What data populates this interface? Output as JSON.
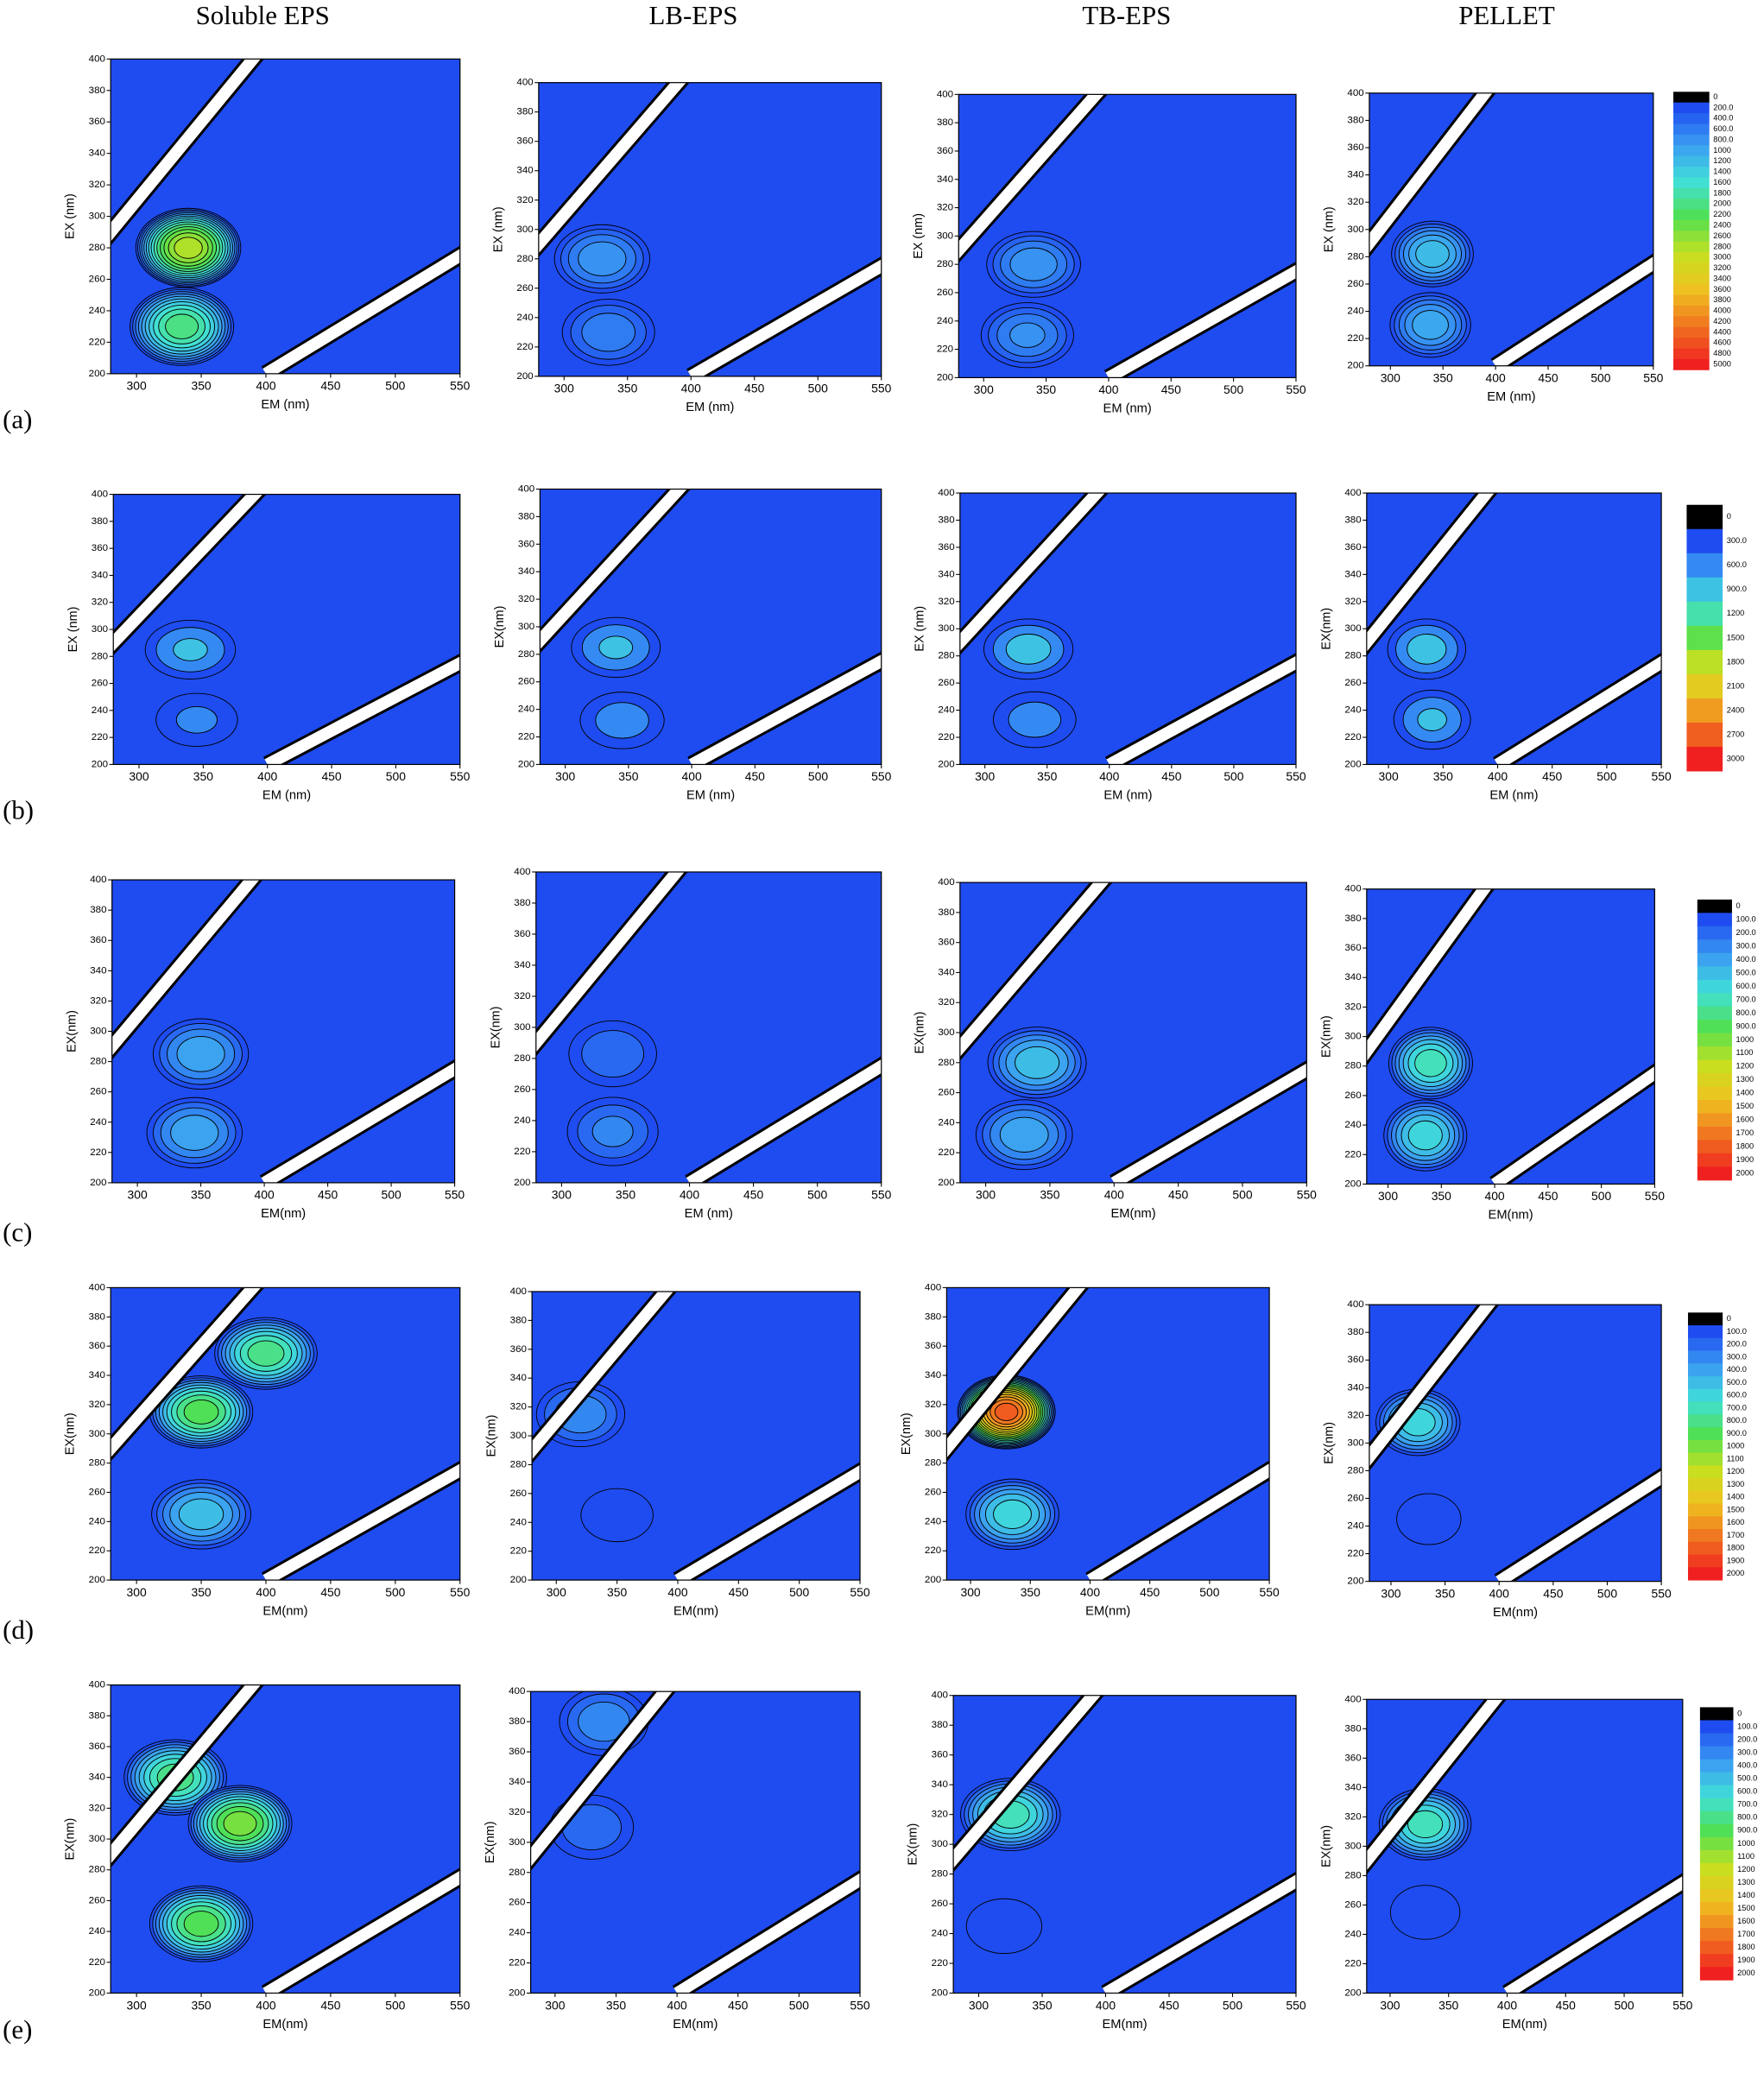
{
  "columns": [
    "Soluble EPS",
    "LB-EPS",
    "TB-EPS",
    "PELLET"
  ],
  "colormap": [
    "#000000",
    "#1f4cf0",
    "#3a9cf2",
    "#40e0d8",
    "#50e050",
    "#c8e020",
    "#f0c020",
    "#f07020",
    "#f02020"
  ],
  "rows": [
    {
      "label": "(a)",
      "colorbar": {
        "ticks": [
          0,
          {
            "value": 200,
            "label": "200.0"
          },
          {
            "value": 400,
            "label": "400.0"
          },
          {
            "value": 600,
            "label": "600.0"
          },
          {
            "value": 800,
            "label": "800.0"
          },
          1000,
          1200,
          1400,
          1600,
          1800,
          2000,
          2200,
          2400,
          2600,
          2800,
          3000,
          3200,
          3400,
          3600,
          3800,
          4000,
          4200,
          4400,
          4600,
          4800,
          5000
        ]
      }
    },
    {
      "label": "(b)",
      "colorbar": {
        "ticks": [
          0,
          {
            "value": 300,
            "label": "300.0"
          },
          {
            "value": 600,
            "label": "600.0"
          },
          {
            "value": 900,
            "label": "900.0"
          },
          1200,
          1500,
          1800,
          2100,
          2400,
          2700,
          3000
        ]
      }
    },
    {
      "label": "(c)",
      "colorbar": {
        "ticks": [
          0,
          {
            "value": 100,
            "label": "100.0"
          },
          {
            "value": 200,
            "label": "200.0"
          },
          {
            "value": 300,
            "label": "300.0"
          },
          {
            "value": 400,
            "label": "400.0"
          },
          {
            "value": 500,
            "label": "500.0"
          },
          {
            "value": 600,
            "label": "600.0"
          },
          {
            "value": 700,
            "label": "700.0"
          },
          {
            "value": 800,
            "label": "800.0"
          },
          {
            "value": 900,
            "label": "900.0"
          },
          1000,
          1100,
          1200,
          1300,
          1400,
          1500,
          1600,
          1700,
          1800,
          1900,
          2000
        ]
      }
    },
    {
      "label": "(d)",
      "colorbar": {
        "ticks": [
          0,
          {
            "value": 100,
            "label": "100.0"
          },
          {
            "value": 200,
            "label": "200.0"
          },
          {
            "value": 300,
            "label": "300.0"
          },
          {
            "value": 400,
            "label": "400.0"
          },
          {
            "value": 500,
            "label": "500.0"
          },
          {
            "value": 600,
            "label": "600.0"
          },
          {
            "value": 700,
            "label": "700.0"
          },
          {
            "value": 800,
            "label": "800.0"
          },
          {
            "value": 900,
            "label": "900.0"
          },
          1000,
          1100,
          1200,
          1300,
          1400,
          1500,
          1600,
          1700,
          1800,
          1900,
          2000
        ]
      }
    },
    {
      "label": "(e)",
      "colorbar": {
        "ticks": [
          0,
          {
            "value": 100,
            "label": "100.0"
          },
          {
            "value": 200,
            "label": "200.0"
          },
          {
            "value": 300,
            "label": "300.0"
          },
          {
            "value": 400,
            "label": "400.0"
          },
          {
            "value": 500,
            "label": "500.0"
          },
          {
            "value": 600,
            "label": "600.0"
          },
          {
            "value": 700,
            "label": "700.0"
          },
          {
            "value": 800,
            "label": "800.0"
          },
          {
            "value": 900,
            "label": "900.0"
          },
          1000,
          1100,
          1200,
          1300,
          1400,
          1500,
          1600,
          1700,
          1800,
          1900,
          2000
        ]
      }
    }
  ],
  "chart_data": [
    {
      "type": "contour",
      "xlabel": "EM (nm)",
      "ylabel": "EX (nm)",
      "xlim": [
        280,
        550
      ],
      "ylim": [
        200,
        400
      ],
      "xticks": [
        300,
        350,
        400,
        450,
        500,
        550
      ],
      "yticks": [
        200,
        220,
        240,
        260,
        280,
        300,
        320,
        340,
        360,
        380,
        400
      ],
      "peaks": [
        {
          "em": 340,
          "ex": 280,
          "value": 3000
        },
        {
          "em": 335,
          "ex": 230,
          "value": 2200
        }
      ]
    },
    {
      "type": "contour",
      "xlabel": "EM (nm)",
      "ylabel": "EX (nm)",
      "xlim": [
        280,
        550
      ],
      "ylim": [
        200,
        400
      ],
      "xticks": [
        300,
        350,
        400,
        450,
        500,
        550
      ],
      "yticks": [
        200,
        220,
        240,
        260,
        280,
        300,
        320,
        340,
        360,
        380,
        400
      ],
      "peaks": [
        {
          "em": 330,
          "ex": 280,
          "value": 1000
        },
        {
          "em": 335,
          "ex": 230,
          "value": 800
        }
      ]
    },
    {
      "type": "contour",
      "xlabel": "EM (nm)",
      "ylabel": "EX (nm)",
      "xlim": [
        280,
        550
      ],
      "ylim": [
        200,
        400
      ],
      "xticks": [
        300,
        350,
        400,
        450,
        500,
        550
      ],
      "yticks": [
        200,
        220,
        240,
        260,
        280,
        300,
        320,
        340,
        360,
        380,
        400
      ],
      "peaks": [
        {
          "em": 340,
          "ex": 280,
          "value": 1000
        },
        {
          "em": 335,
          "ex": 230,
          "value": 900
        }
      ]
    },
    {
      "type": "contour",
      "xlabel": "EM (nm)",
      "ylabel": "EX (nm)",
      "xlim": [
        280,
        550
      ],
      "ylim": [
        200,
        400
      ],
      "xticks": [
        300,
        350,
        400,
        450,
        500,
        550
      ],
      "yticks": [
        200,
        220,
        240,
        260,
        280,
        300,
        320,
        340,
        360,
        380,
        400
      ],
      "peaks": [
        {
          "em": 340,
          "ex": 282,
          "value": 1400
        },
        {
          "em": 338,
          "ex": 230,
          "value": 1200
        }
      ]
    },
    {
      "type": "contour",
      "xlabel": "EM (nm)",
      "ylabel": "EX (nm)",
      "xlim": [
        280,
        550
      ],
      "ylim": [
        200,
        400
      ],
      "xticks": [
        300,
        350,
        400,
        450,
        500,
        550
      ],
      "yticks": [
        200,
        220,
        240,
        260,
        280,
        300,
        320,
        340,
        360,
        380,
        400
      ],
      "peaks": [
        {
          "em": 340,
          "ex": 285,
          "value": 1000
        },
        {
          "em": 345,
          "ex": 233,
          "value": 700
        }
      ]
    },
    {
      "type": "contour",
      "xlabel": "EM (nm)",
      "ylabel": "EX(nm)",
      "xlim": [
        280,
        550
      ],
      "ylim": [
        200,
        400
      ],
      "xticks": [
        300,
        350,
        400,
        450,
        500,
        550
      ],
      "yticks": [
        200,
        220,
        240,
        260,
        280,
        300,
        320,
        340,
        360,
        380,
        400
      ],
      "peaks": [
        {
          "em": 340,
          "ex": 285,
          "value": 1000
        },
        {
          "em": 345,
          "ex": 232,
          "value": 800
        }
      ]
    },
    {
      "type": "contour",
      "xlabel": "EM (nm)",
      "ylabel": "EX (nm)",
      "xlim": [
        280,
        550
      ],
      "ylim": [
        200,
        400
      ],
      "xticks": [
        300,
        350,
        400,
        450,
        500,
        550
      ],
      "yticks": [
        200,
        220,
        240,
        260,
        280,
        300,
        320,
        340,
        360,
        380,
        400
      ],
      "peaks": [
        {
          "em": 335,
          "ex": 285,
          "value": 1100
        },
        {
          "em": 340,
          "ex": 233,
          "value": 800
        }
      ]
    },
    {
      "type": "contour",
      "xlabel": "EM (nm)",
      "ylabel": "EX(nm)",
      "xlim": [
        280,
        550
      ],
      "ylim": [
        200,
        400
      ],
      "xticks": [
        300,
        350,
        400,
        450,
        500,
        550
      ],
      "yticks": [
        200,
        220,
        240,
        260,
        280,
        300,
        320,
        340,
        360,
        380,
        400
      ],
      "peaks": [
        {
          "em": 335,
          "ex": 285,
          "value": 1100
        },
        {
          "em": 340,
          "ex": 233,
          "value": 1000
        }
      ]
    },
    {
      "type": "contour",
      "xlabel": "EM(nm)",
      "ylabel": "EX(nm)",
      "xlim": [
        280,
        550
      ],
      "ylim": [
        200,
        400
      ],
      "xticks": [
        300,
        350,
        400,
        450,
        500,
        550
      ],
      "yticks": [
        200,
        220,
        240,
        260,
        280,
        300,
        320,
        340,
        360,
        380,
        400
      ],
      "peaks": [
        {
          "em": 350,
          "ex": 285,
          "value": 500
        },
        {
          "em": 345,
          "ex": 233,
          "value": 500
        }
      ]
    },
    {
      "type": "contour",
      "xlabel": "EM (nm)",
      "ylabel": "EX(nm)",
      "xlim": [
        280,
        550
      ],
      "ylim": [
        200,
        400
      ],
      "xticks": [
        300,
        350,
        400,
        450,
        500,
        550
      ],
      "yticks": [
        200,
        220,
        240,
        260,
        280,
        300,
        320,
        340,
        360,
        380,
        400
      ],
      "peaks": [
        {
          "em": 340,
          "ex": 283,
          "value": 300
        },
        {
          "em": 340,
          "ex": 233,
          "value": 350
        }
      ]
    },
    {
      "type": "contour",
      "xlabel": "EM(nm)",
      "ylabel": "EX(nm)",
      "xlim": [
        280,
        550
      ],
      "ylim": [
        200,
        400
      ],
      "xticks": [
        300,
        350,
        400,
        450,
        500,
        550
      ],
      "yticks": [
        200,
        220,
        240,
        260,
        280,
        300,
        320,
        340,
        360,
        380,
        400
      ],
      "peaks": [
        {
          "em": 340,
          "ex": 280,
          "value": 600
        },
        {
          "em": 330,
          "ex": 232,
          "value": 500
        }
      ]
    },
    {
      "type": "contour",
      "xlabel": "EM(nm)",
      "ylabel": "EX(nm)",
      "xlim": [
        280,
        550
      ],
      "ylim": [
        200,
        400
      ],
      "xticks": [
        300,
        350,
        400,
        450,
        500,
        550
      ],
      "yticks": [
        200,
        220,
        240,
        260,
        280,
        300,
        320,
        340,
        360,
        380,
        400
      ],
      "peaks": [
        {
          "em": 340,
          "ex": 282,
          "value": 800
        },
        {
          "em": 335,
          "ex": 233,
          "value": 700
        }
      ]
    },
    {
      "type": "contour",
      "xlabel": "EM(nm)",
      "ylabel": "EX(nm)",
      "xlim": [
        280,
        550
      ],
      "ylim": [
        200,
        400
      ],
      "xticks": [
        300,
        350,
        400,
        450,
        500,
        550
      ],
      "yticks": [
        200,
        220,
        240,
        260,
        280,
        300,
        320,
        340,
        360,
        380,
        400
      ],
      "peaks": [
        {
          "em": 400,
          "ex": 355,
          "value": 900
        },
        {
          "em": 350,
          "ex": 315,
          "value": 1000
        },
        {
          "em": 350,
          "ex": 245,
          "value": 600
        }
      ]
    },
    {
      "type": "contour",
      "xlabel": "EM(nm)",
      "ylabel": "EX(nm)",
      "xlim": [
        280,
        550
      ],
      "ylim": [
        200,
        400
      ],
      "xticks": [
        300,
        350,
        400,
        450,
        500,
        550
      ],
      "yticks": [
        200,
        220,
        240,
        260,
        280,
        300,
        320,
        340,
        360,
        380,
        400
      ],
      "peaks": [
        {
          "em": 320,
          "ex": 315,
          "value": 400
        },
        {
          "em": 350,
          "ex": 245,
          "value": 200
        }
      ]
    },
    {
      "type": "contour",
      "xlabel": "EM(nm)",
      "ylabel": "EX(nm)",
      "xlim": [
        280,
        550
      ],
      "ylim": [
        200,
        400
      ],
      "xticks": [
        300,
        350,
        400,
        450,
        500,
        550
      ],
      "yticks": [
        200,
        220,
        240,
        260,
        280,
        300,
        320,
        340,
        360,
        380,
        400
      ],
      "peaks": [
        {
          "em": 330,
          "ex": 315,
          "value": 1900
        },
        {
          "em": 335,
          "ex": 245,
          "value": 700
        }
      ]
    },
    {
      "type": "contour",
      "xlabel": "EM(nm)",
      "ylabel": "EX(nm)",
      "xlim": [
        280,
        550
      ],
      "ylim": [
        200,
        400
      ],
      "xticks": [
        300,
        350,
        400,
        450,
        500,
        550
      ],
      "yticks": [
        200,
        220,
        240,
        260,
        280,
        300,
        320,
        340,
        360,
        380,
        400
      ],
      "peaks": [
        {
          "em": 325,
          "ex": 315,
          "value": 700
        },
        {
          "em": 335,
          "ex": 245,
          "value": 200
        }
      ]
    },
    {
      "type": "contour",
      "xlabel": "EM(nm)",
      "ylabel": "EX(nm)",
      "xlim": [
        280,
        550
      ],
      "ylim": [
        200,
        400
      ],
      "xticks": [
        300,
        350,
        400,
        450,
        500,
        550
      ],
      "yticks": [
        200,
        220,
        240,
        260,
        280,
        300,
        320,
        340,
        360,
        380,
        400
      ],
      "peaks": [
        {
          "em": 330,
          "ex": 340,
          "value": 900
        },
        {
          "em": 380,
          "ex": 310,
          "value": 1100
        },
        {
          "em": 350,
          "ex": 245,
          "value": 1000
        }
      ]
    },
    {
      "type": "contour",
      "xlabel": "EM(nm)",
      "ylabel": "EX(nm)",
      "xlim": [
        280,
        550
      ],
      "ylim": [
        200,
        400
      ],
      "xticks": [
        300,
        350,
        400,
        450,
        500,
        550
      ],
      "yticks": [
        200,
        220,
        240,
        260,
        280,
        300,
        320,
        340,
        360,
        380,
        400
      ],
      "peaks": [
        {
          "em": 340,
          "ex": 380,
          "value": 400
        },
        {
          "em": 330,
          "ex": 310,
          "value": 300
        }
      ]
    },
    {
      "type": "contour",
      "xlabel": "EM(nm)",
      "ylabel": "EX(nm)",
      "xlim": [
        280,
        550
      ],
      "ylim": [
        200,
        400
      ],
      "xticks": [
        300,
        350,
        400,
        450,
        500,
        550
      ],
      "yticks": [
        200,
        220,
        240,
        260,
        280,
        300,
        320,
        340,
        360,
        380,
        400
      ],
      "peaks": [
        {
          "em": 325,
          "ex": 320,
          "value": 800
        },
        {
          "em": 320,
          "ex": 245,
          "value": 200
        }
      ]
    },
    {
      "type": "contour",
      "xlabel": "EM(nm)",
      "ylabel": "EX(nm)",
      "xlim": [
        280,
        550
      ],
      "ylim": [
        200,
        400
      ],
      "xticks": [
        300,
        350,
        400,
        450,
        500,
        550
      ],
      "yticks": [
        200,
        220,
        240,
        260,
        280,
        300,
        320,
        340,
        360,
        380,
        400
      ],
      "peaks": [
        {
          "em": 330,
          "ex": 315,
          "value": 800
        },
        {
          "em": 330,
          "ex": 255,
          "value": 200
        }
      ]
    }
  ]
}
